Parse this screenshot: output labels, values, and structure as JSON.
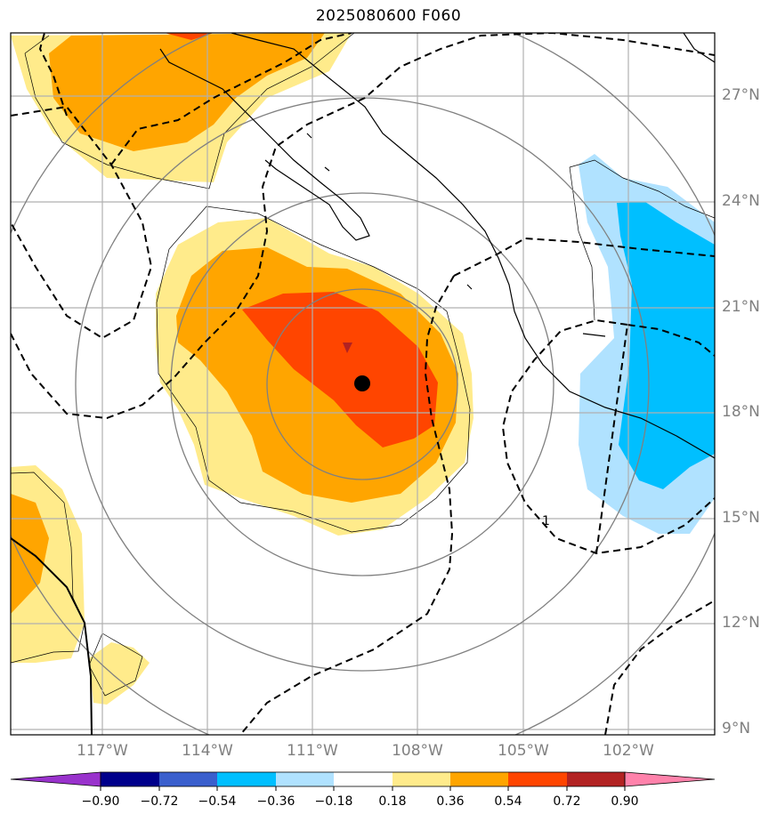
{
  "title": "2025080600 F060",
  "lat_labels": [
    "27°N",
    "24°N",
    "21°N",
    "18°N",
    "15°N",
    "12°N",
    "9°N"
  ],
  "lon_labels": [
    "117°W",
    "114°W",
    "111°W",
    "108°W",
    "105°W",
    "102°W"
  ],
  "colorbar": {
    "ticks": [
      "−0.90",
      "−0.72",
      "−0.54",
      "−0.36",
      "−0.18",
      "0.18",
      "0.36",
      "0.54",
      "0.72",
      "0.90"
    ],
    "colors": [
      "#9932cc",
      "#00008b",
      "#3a5fcd",
      "#00bfff",
      "#b0e2ff",
      "#ffffff",
      "#ffeb8b",
      "#ffa500",
      "#ff4500",
      "#b22222",
      "#ff82ab"
    ]
  },
  "center_marker": {
    "lon": -109.4,
    "lat": 18.8
  },
  "contour_label": "1"
}
